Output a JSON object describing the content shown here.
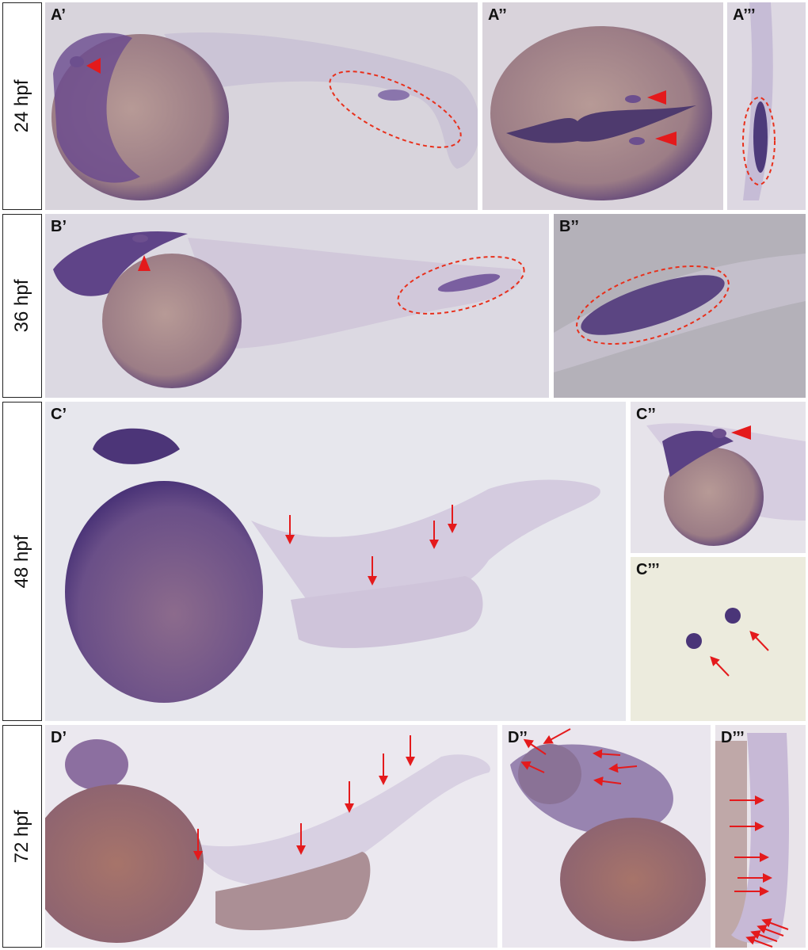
{
  "rows": [
    {
      "label": "24 hpf",
      "panels": [
        "A’",
        "A’’",
        "A’’’"
      ]
    },
    {
      "label": "36 hpf",
      "panels": [
        "B’",
        "B’’"
      ]
    },
    {
      "label": "48 hpf",
      "panels": [
        "C’",
        "C’’",
        "C’’’"
      ]
    },
    {
      "label": "72 hpf",
      "panels": [
        "D’",
        "D’’",
        "D’’’"
      ]
    }
  ]
}
